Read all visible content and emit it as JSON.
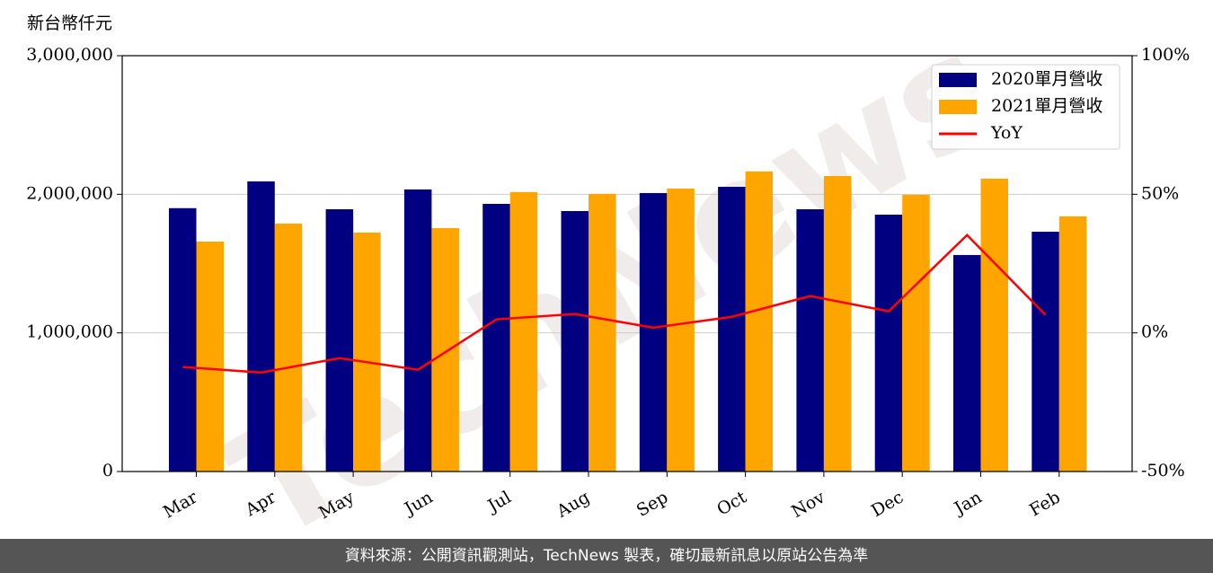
{
  "chart_data": {
    "type": "bar",
    "ylabel": "新台幣仟元",
    "watermark": "TechNews",
    "categories": [
      "Mar",
      "Apr",
      "May",
      "Jun",
      "Jul",
      "Aug",
      "Sep",
      "Oct",
      "Nov",
      "Dec",
      "Jan",
      "Feb"
    ],
    "series": [
      {
        "name": "2020單月營收",
        "color": "#000080",
        "values": [
          1900000,
          2093000,
          1892000,
          2035000,
          1931000,
          1879000,
          2009000,
          2054000,
          1892000,
          1853000,
          1562000,
          1730000
        ]
      },
      {
        "name": "2021單月營收",
        "color": "#ffa500",
        "values": [
          1659000,
          1789000,
          1724000,
          1756000,
          2016000,
          2003000,
          2041000,
          2165000,
          2132000,
          1996000,
          2113000,
          1841000
        ]
      },
      {
        "name": "YoY",
        "color": "#ff0000",
        "type": "line",
        "axis": "y2",
        "values": [
          -12.3,
          -14.3,
          -9.1,
          -13.3,
          4.9,
          6.8,
          1.9,
          5.8,
          13.3,
          7.8,
          35.3,
          6.5
        ]
      }
    ],
    "ylim": [
      0,
      3000000
    ],
    "yticks": [
      0,
      {
        "value": 1000000,
        "label": "1,000,000"
      },
      {
        "value": 2000000,
        "label": "2,000,000"
      },
      {
        "value": 3000000,
        "label": "3,000,000"
      }
    ],
    "y2lim": [
      -50,
      100
    ],
    "y2ticks": [
      {
        "value": -50,
        "label": "-50%"
      },
      {
        "value": 0,
        "label": "0%"
      },
      {
        "value": 50,
        "label": "50%"
      },
      {
        "value": 100,
        "label": "100%"
      }
    ],
    "grid": true,
    "legend": "upper-right"
  },
  "footer": "資料來源：公開資訊觀測站，TechNews 製表，確切最新訊息以原站公告為準"
}
